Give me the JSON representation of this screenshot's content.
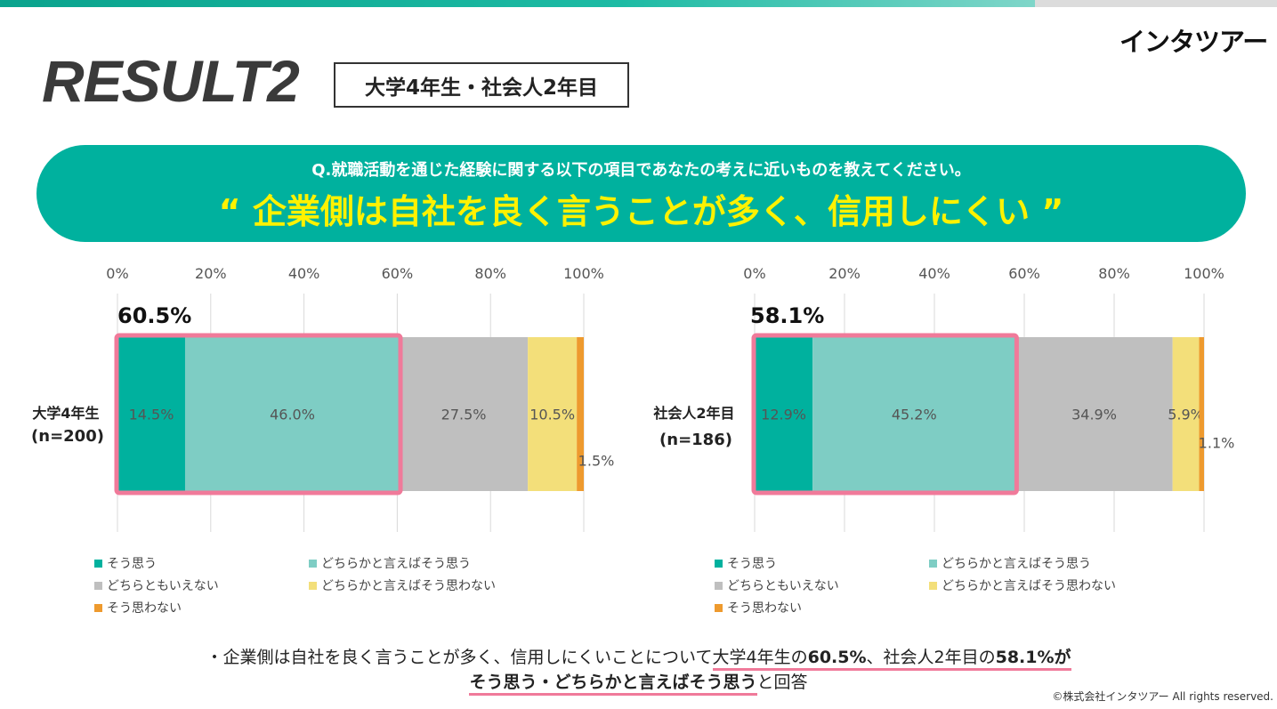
{
  "header": {
    "logo": "インタツアー",
    "title": "RESULT2",
    "subject": "大学4年生・社会人2年目"
  },
  "question": {
    "text": "Q.就職活動を通じた経験に関する以下の項目であなたの考えに近いものを教えてください。",
    "quote": "“ 企業側は自社を良く言うことが多く、信用しにくい ”"
  },
  "colors": {
    "accent": "#00b19e",
    "highlight": "#fff200",
    "frame": "#f07a9a"
  },
  "chart_data": [
    {
      "type": "bar",
      "orientation": "horizontal-stacked-100",
      "category_label": "大学4年生",
      "n_label": "(n=200)",
      "highlight_label": "60.5%",
      "highlight_value": 60.5,
      "axis": {
        "min": 0,
        "max": 100,
        "ticks": [
          "0%",
          "20%",
          "40%",
          "60%",
          "80%",
          "100%"
        ]
      },
      "series": [
        {
          "name": "そう思う",
          "value": 14.5,
          "label": "14.5%",
          "color": "#00b19e"
        },
        {
          "name": "どちらかと言えばそう思う",
          "value": 46.0,
          "label": "46.0%",
          "color": "#7ecdc4"
        },
        {
          "name": "どちらともいえない",
          "value": 27.5,
          "label": "27.5%",
          "color": "#bfbfbf"
        },
        {
          "name": "どちらかと言えばそう思わない",
          "value": 10.5,
          "label": "10.5%",
          "color": "#f3df7a"
        },
        {
          "name": "そう思わない",
          "value": 1.5,
          "label": "1.5%",
          "color": "#ee9a2e"
        }
      ]
    },
    {
      "type": "bar",
      "orientation": "horizontal-stacked-100",
      "category_label": "社会人2年目",
      "n_label": "(n=186)",
      "highlight_label": "58.1%",
      "highlight_value": 58.1,
      "axis": {
        "min": 0,
        "max": 100,
        "ticks": [
          "0%",
          "20%",
          "40%",
          "60%",
          "80%",
          "100%"
        ]
      },
      "series": [
        {
          "name": "そう思う",
          "value": 12.9,
          "label": "12.9%",
          "color": "#00b19e"
        },
        {
          "name": "どちらかと言えばそう思う",
          "value": 45.2,
          "label": "45.2%",
          "color": "#7ecdc4"
        },
        {
          "name": "どちらともいえない",
          "value": 34.9,
          "label": "34.9%",
          "color": "#bfbfbf"
        },
        {
          "name": "どちらかと言えばそう思わない",
          "value": 5.9,
          "label": "5.9%",
          "color": "#f3df7a"
        },
        {
          "name": "そう思わない",
          "value": 1.1,
          "label": "1.1%",
          "color": "#ee9a2e"
        }
      ]
    }
  ],
  "summary": {
    "line1_prefix": "・企業側は自社を良く言うことが多く、信用しにくいことについて",
    "line1_group1": "大学4年生の",
    "line1_value1": "60.5%",
    "line1_sep": "、社会人2年目の",
    "line1_value2": "58.1%",
    "line1_suffix": "が",
    "line2_highlight": "そう思う・どちらかと言えばそう思う",
    "line2_suffix": "と回答"
  },
  "footer": {
    "copyright": "©株式会社インタツアー All rights reserved."
  }
}
